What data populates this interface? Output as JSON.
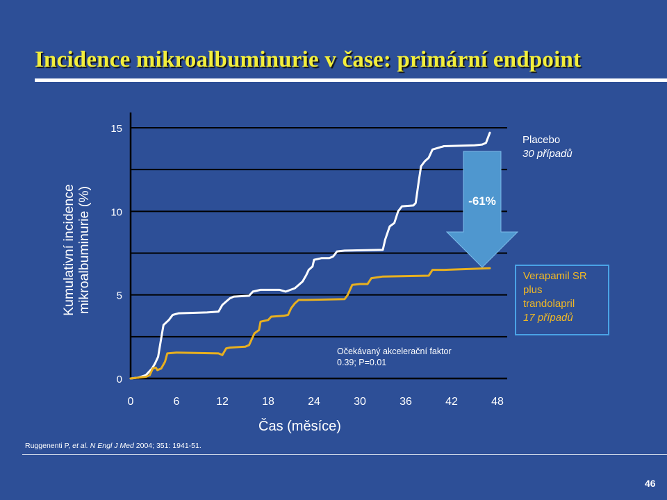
{
  "slide": {
    "title": "Incidence mikroalbuminurie v čase: primární endpoint",
    "reference_authors": "Ruggenenti P, ",
    "reference_etal": "et al. N Engl J Med",
    "reference_rest": " 2004; 351: 1941-51.",
    "page_number": "46"
  },
  "chart_data": {
    "type": "line",
    "title": "",
    "xlabel": "Čas (měsíce)",
    "ylabel_lines": [
      "Kumulativní incidence",
      "mikroalbuminurie (%)"
    ],
    "xlim": [
      0,
      48
    ],
    "ylim": [
      0,
      15
    ],
    "x_ticks": [
      0,
      6,
      12,
      18,
      24,
      30,
      36,
      42,
      48
    ],
    "y_ticks": [
      0,
      5,
      10,
      15
    ],
    "grid": "horizontal lines",
    "series": [
      {
        "name": "Placebo",
        "subtitle": "30 případů",
        "color": "#ffffff",
        "points": [
          [
            0,
            0
          ],
          [
            1,
            0.05
          ],
          [
            2,
            0.2
          ],
          [
            2.8,
            0.6
          ],
          [
            3.2,
            0.9
          ],
          [
            3.6,
            1.3
          ],
          [
            4,
            2.4
          ],
          [
            4.3,
            3.2
          ],
          [
            5,
            3.5
          ],
          [
            5.5,
            3.8
          ],
          [
            6.3,
            3.9
          ],
          [
            10,
            3.95
          ],
          [
            11.5,
            4.0
          ],
          [
            12,
            4.4
          ],
          [
            12.5,
            4.6
          ],
          [
            13,
            4.8
          ],
          [
            13.5,
            4.9
          ],
          [
            15.5,
            4.95
          ],
          [
            16,
            5.2
          ],
          [
            17,
            5.3
          ],
          [
            19.5,
            5.3
          ],
          [
            20.3,
            5.2
          ],
          [
            21.5,
            5.4
          ],
          [
            22.5,
            5.8
          ],
          [
            23,
            6.2
          ],
          [
            23.3,
            6.5
          ],
          [
            23.8,
            6.7
          ],
          [
            24,
            7.1
          ],
          [
            25,
            7.2
          ],
          [
            26,
            7.2
          ],
          [
            26.5,
            7.3
          ],
          [
            27,
            7.6
          ],
          [
            28,
            7.65
          ],
          [
            33,
            7.7
          ],
          [
            33.3,
            8.3
          ],
          [
            33.6,
            8.7
          ],
          [
            33.9,
            9.1
          ],
          [
            34.5,
            9.3
          ],
          [
            35,
            10.0
          ],
          [
            35.5,
            10.3
          ],
          [
            37,
            10.35
          ],
          [
            37.3,
            10.5
          ],
          [
            37.7,
            11.8
          ],
          [
            38,
            12.7
          ],
          [
            38.5,
            13.0
          ],
          [
            39,
            13.2
          ],
          [
            39.5,
            13.7
          ],
          [
            41,
            13.9
          ],
          [
            45,
            13.95
          ],
          [
            46,
            14.0
          ],
          [
            46.5,
            14.1
          ],
          [
            47,
            14.7
          ]
        ]
      },
      {
        "name": "Verapamil SR plus trandolapril",
        "name_lines": [
          "Verapamil SR",
          "plus",
          "trandolapril"
        ],
        "subtitle": "17 případů",
        "color": "#e8b01f",
        "points": [
          [
            0,
            0
          ],
          [
            2,
            0.1
          ],
          [
            2.5,
            0.2
          ],
          [
            2.7,
            0.4
          ],
          [
            2.9,
            0.6
          ],
          [
            3.3,
            0.65
          ],
          [
            3.5,
            0.5
          ],
          [
            4,
            0.6
          ],
          [
            4.5,
            1.0
          ],
          [
            4.8,
            1.5
          ],
          [
            6,
            1.55
          ],
          [
            11.5,
            1.5
          ],
          [
            12,
            1.4
          ],
          [
            12.5,
            1.8
          ],
          [
            13,
            1.85
          ],
          [
            15,
            1.9
          ],
          [
            15.5,
            2.0
          ],
          [
            15.8,
            2.3
          ],
          [
            16.2,
            2.7
          ],
          [
            16.8,
            2.9
          ],
          [
            17,
            3.4
          ],
          [
            18,
            3.5
          ],
          [
            18.4,
            3.7
          ],
          [
            20,
            3.75
          ],
          [
            20.6,
            3.8
          ],
          [
            21,
            4.2
          ],
          [
            21.5,
            4.5
          ],
          [
            22,
            4.7
          ],
          [
            23,
            4.7
          ],
          [
            28,
            4.75
          ],
          [
            28.4,
            5.0
          ],
          [
            28.6,
            5.2
          ],
          [
            29,
            5.6
          ],
          [
            30,
            5.65
          ],
          [
            31,
            5.65
          ],
          [
            31.5,
            6.0
          ],
          [
            33,
            6.1
          ],
          [
            39,
            6.15
          ],
          [
            39.5,
            6.5
          ],
          [
            41,
            6.5
          ],
          [
            47,
            6.6
          ]
        ]
      }
    ],
    "reduction_label": "-61%",
    "annotation_lines": [
      "Očekávaný akcelerační faktor",
      "0.39; P=0.01"
    ]
  }
}
